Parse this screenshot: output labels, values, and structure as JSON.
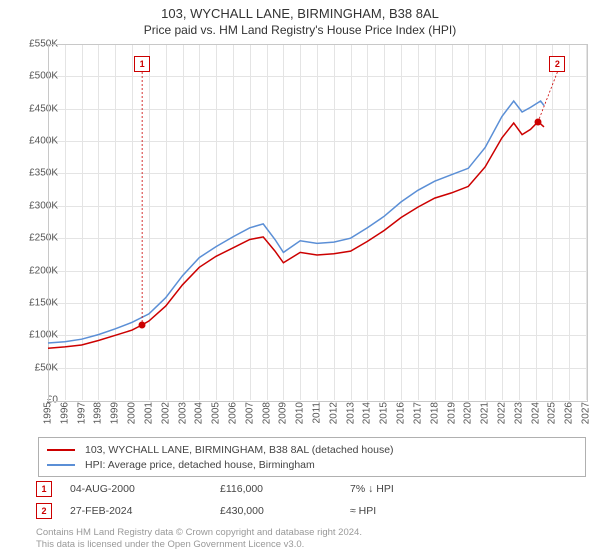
{
  "title": "103, WYCHALL LANE, BIRMINGHAM, B38 8AL",
  "subtitle": "Price paid vs. HM Land Registry's House Price Index (HPI)",
  "chart": {
    "type": "line",
    "background_color": "#ffffff",
    "grid_color": "#e4e4e4",
    "border_color": "#c8c8c8",
    "x_start_year": 1995,
    "x_end_year": 2027,
    "x_tick_step": 1,
    "ylim": [
      0,
      550000
    ],
    "ytick_step": 50000,
    "ytick_labels": [
      "£0",
      "£50K",
      "£100K",
      "£150K",
      "£200K",
      "£250K",
      "£300K",
      "£350K",
      "£400K",
      "£450K",
      "£500K",
      "£550K"
    ],
    "label_fontsize": 10,
    "label_color": "#555555",
    "line_width": 1.5,
    "series": [
      {
        "name": "103, WYCHALL LANE, BIRMINGHAM, B38 8AL (detached house)",
        "color": "#cc0000",
        "points": [
          [
            1995.0,
            80000
          ],
          [
            1996.0,
            82000
          ],
          [
            1997.0,
            85000
          ],
          [
            1998.0,
            92000
          ],
          [
            1999.0,
            100000
          ],
          [
            2000.0,
            108000
          ],
          [
            2000.6,
            116000
          ],
          [
            2001.0,
            122000
          ],
          [
            2002.0,
            145000
          ],
          [
            2003.0,
            178000
          ],
          [
            2004.0,
            205000
          ],
          [
            2005.0,
            222000
          ],
          [
            2006.0,
            235000
          ],
          [
            2007.0,
            248000
          ],
          [
            2007.8,
            252000
          ],
          [
            2008.5,
            230000
          ],
          [
            2009.0,
            212000
          ],
          [
            2010.0,
            228000
          ],
          [
            2011.0,
            224000
          ],
          [
            2012.0,
            226000
          ],
          [
            2013.0,
            230000
          ],
          [
            2014.0,
            245000
          ],
          [
            2015.0,
            262000
          ],
          [
            2016.0,
            282000
          ],
          [
            2017.0,
            298000
          ],
          [
            2018.0,
            312000
          ],
          [
            2019.0,
            320000
          ],
          [
            2020.0,
            330000
          ],
          [
            2021.0,
            360000
          ],
          [
            2022.0,
            405000
          ],
          [
            2022.7,
            428000
          ],
          [
            2023.2,
            410000
          ],
          [
            2023.7,
            418000
          ],
          [
            2024.15,
            430000
          ],
          [
            2024.5,
            422000
          ]
        ]
      },
      {
        "name": "HPI: Average price, detached house, Birmingham",
        "color": "#5b8fd6",
        "points": [
          [
            1995.0,
            88000
          ],
          [
            1996.0,
            90000
          ],
          [
            1997.0,
            94000
          ],
          [
            1998.0,
            101000
          ],
          [
            1999.0,
            110000
          ],
          [
            2000.0,
            120000
          ],
          [
            2001.0,
            133000
          ],
          [
            2002.0,
            158000
          ],
          [
            2003.0,
            192000
          ],
          [
            2004.0,
            220000
          ],
          [
            2005.0,
            237000
          ],
          [
            2006.0,
            252000
          ],
          [
            2007.0,
            266000
          ],
          [
            2007.8,
            272000
          ],
          [
            2008.5,
            248000
          ],
          [
            2009.0,
            228000
          ],
          [
            2010.0,
            246000
          ],
          [
            2011.0,
            242000
          ],
          [
            2012.0,
            244000
          ],
          [
            2013.0,
            250000
          ],
          [
            2014.0,
            266000
          ],
          [
            2015.0,
            284000
          ],
          [
            2016.0,
            306000
          ],
          [
            2017.0,
            324000
          ],
          [
            2018.0,
            338000
          ],
          [
            2019.0,
            348000
          ],
          [
            2020.0,
            358000
          ],
          [
            2021.0,
            390000
          ],
          [
            2022.0,
            438000
          ],
          [
            2022.7,
            462000
          ],
          [
            2023.2,
            445000
          ],
          [
            2023.7,
            452000
          ],
          [
            2024.3,
            462000
          ],
          [
            2024.5,
            455000
          ]
        ]
      }
    ],
    "markers": [
      {
        "n": "1",
        "year": 2000.6,
        "value": 116000,
        "box_year": 2000.6,
        "box_y": 56
      },
      {
        "n": "2",
        "year": 2024.15,
        "value": 430000,
        "box_year": 2025.3,
        "box_y": 56
      }
    ]
  },
  "legend": {
    "border_color": "#b0b0b0",
    "fontsize": 10.5
  },
  "transactions": [
    {
      "n": "1",
      "date": "04-AUG-2000",
      "price": "£116,000",
      "pct": "7% ↓ HPI"
    },
    {
      "n": "2",
      "date": "27-FEB-2024",
      "price": "£430,000",
      "pct": "≈ HPI"
    }
  ],
  "footer": {
    "line1": "Contains HM Land Registry data © Crown copyright and database right 2024.",
    "line2": "This data is licensed under the Open Government Licence v3.0.",
    "color": "#999999",
    "fontsize": 9.5
  }
}
